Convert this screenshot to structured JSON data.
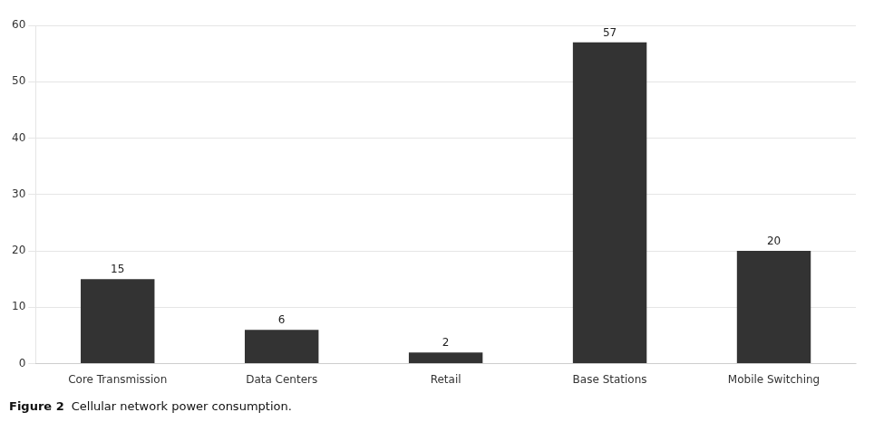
{
  "chart_data": {
    "type": "bar",
    "title": "Figure 2",
    "subtitle": "Cellular network power consumption.",
    "categories": [
      "Core Transmission",
      "Data Centers",
      "Retail",
      "Base Stations",
      "Mobile Switching"
    ],
    "values": [
      15,
      6,
      2,
      57,
      20
    ],
    "color": "#333333",
    "ylim": [
      0,
      60
    ],
    "yticks": [
      0,
      10,
      20,
      30,
      40,
      50,
      60
    ],
    "grid": true,
    "data_labels": true
  }
}
